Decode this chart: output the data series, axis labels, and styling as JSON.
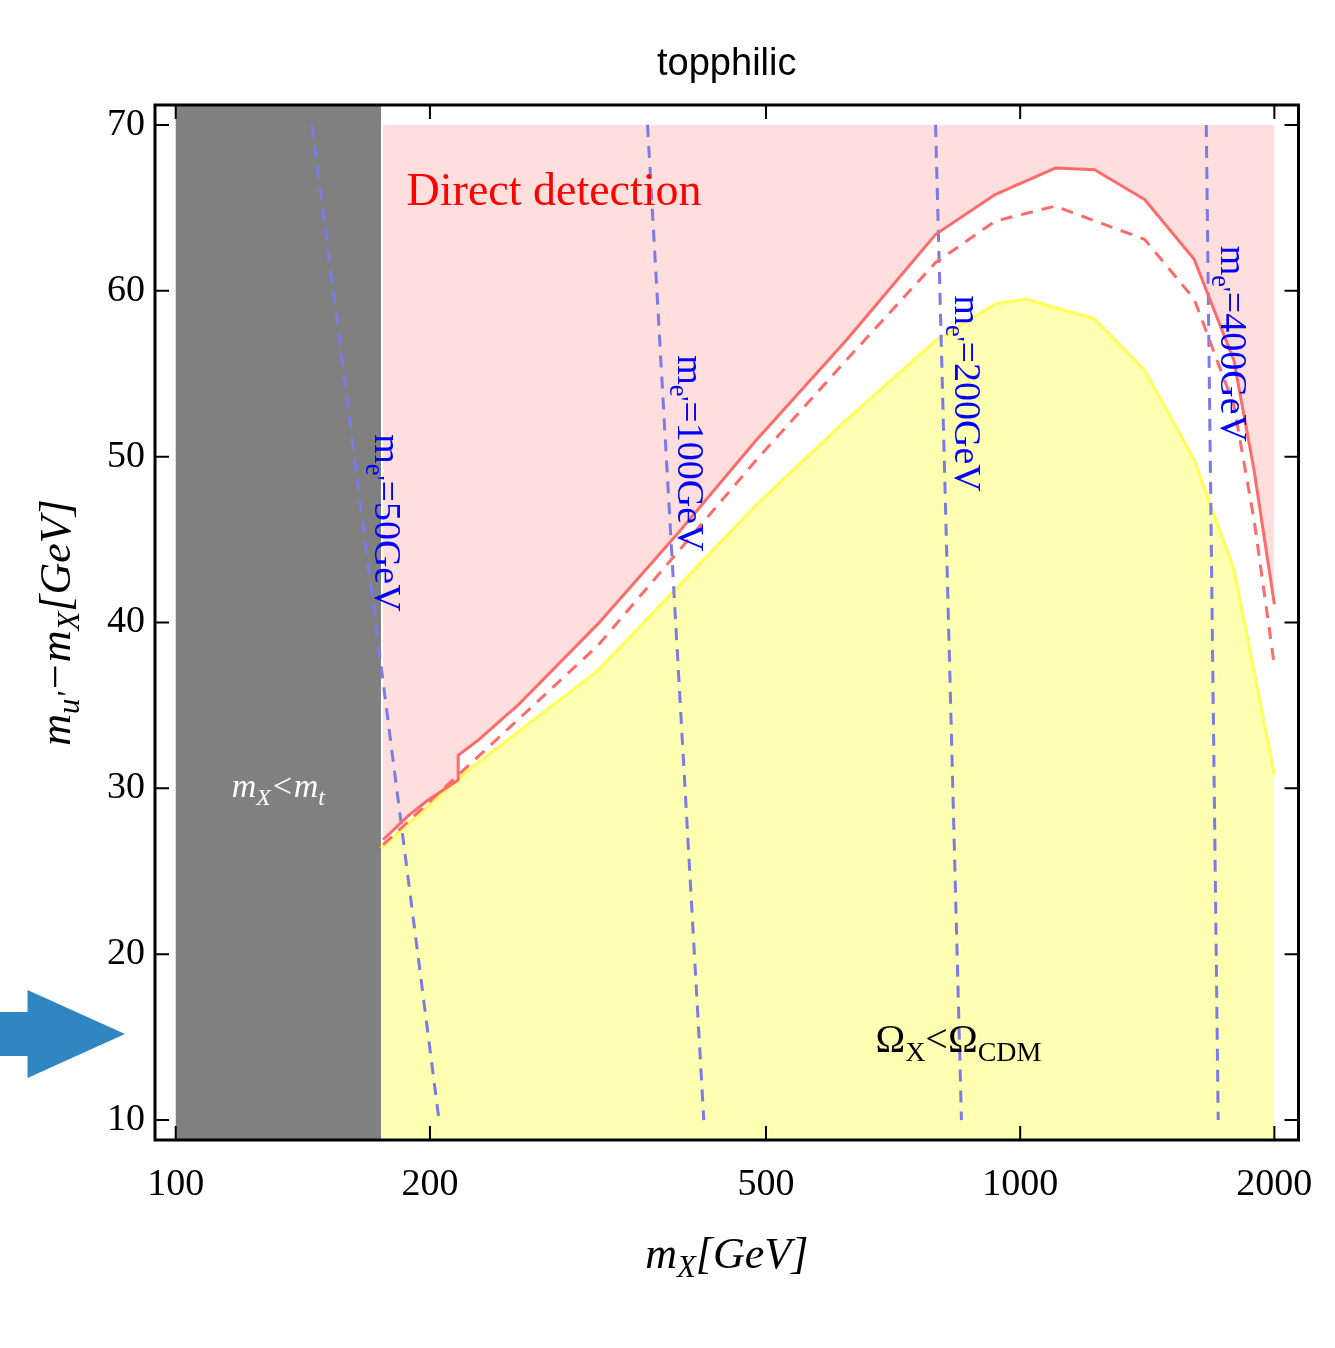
{
  "chart_data": {
    "type": "line",
    "title": "topphilic",
    "xlabel": "m$_{X}$[GeV]",
    "ylabel": "m$_{u'}$−m$_{X}$[GeV]",
    "log": "x",
    "xlim": [
      94.5,
      2136
    ],
    "ylim": [
      8.8,
      71.2
    ],
    "xticks": [
      100,
      200,
      500,
      1000,
      2000
    ],
    "yticks": [
      10,
      20,
      30,
      40,
      50,
      60,
      70
    ],
    "grid": false,
    "legend": false,
    "marker": "none",
    "bands": [
      {
        "axis": "x",
        "from": 100,
        "to": 175,
        "label": "m$_{X}$<m$_{t}$",
        "color": "#808080"
      }
    ],
    "annotations": [
      "Direct detection",
      "Ω$_{X}$<Ω$_{CDM}$"
    ],
    "series": [
      {
        "color": "#ff6b6b",
        "x": [
          176,
          189,
          199,
          216,
          216,
          228,
          254,
          316,
          392,
          487,
          622,
          794,
          934,
          1100,
          1225,
          1404,
          1607,
          1791,
          1892,
          2000
        ],
        "values": [
          26.9,
          28.4,
          29.3,
          30.5,
          32.0,
          32.9,
          35.0,
          39.9,
          45.3,
          51.0,
          57.0,
          63.4,
          65.8,
          67.4,
          67.3,
          65.5,
          61.9,
          55.8,
          49.2,
          41.1
        ],
        "lower": [
          26.9,
          28.4,
          29.3,
          30.5,
          32.0,
          32.9,
          35.0,
          39.9,
          45.3,
          51.0,
          57.0,
          63.4,
          65.8,
          67.4,
          67.3,
          65.5,
          61.9,
          55.8,
          49.2,
          41.1
        ],
        "upper": [
          70,
          70,
          70,
          70,
          70,
          70,
          70,
          70,
          70,
          70,
          70,
          70,
          70,
          70,
          70,
          70,
          70,
          70,
          70,
          70
        ]
      },
      {
        "type": "area",
        "color": "#ffff55",
        "x": [
          175,
          222,
          316,
          487,
          622,
          794,
          934,
          1014,
          1225,
          1404,
          1607,
          1791,
          2000
        ],
        "values": [
          26.4,
          31.1,
          37.1,
          47.1,
          52.2,
          57.0,
          59.2,
          59.5,
          58.3,
          55.2,
          49.8,
          43.2,
          30.8
        ]
      },
      {
        "color": "#ff6b6b",
        "line_style": "dashed",
        "x": [
          176,
          216,
          316,
          487,
          622,
          794,
          934,
          1100,
          1404,
          1607,
          1791,
          1892,
          2000
        ],
        "values": [
          26.6,
          30.8,
          38.6,
          49.8,
          55.8,
          61.7,
          64.2,
          65.1,
          63.1,
          59.5,
          53.1,
          46.2,
          37.4
        ]
      },
      {
        "name": "m$_{e'}$=50GeV",
        "color": "#7a7ae8",
        "line_style": "dashed",
        "x": [
          145,
          205
        ],
        "values": [
          70,
          10
        ]
      },
      {
        "name": "m$_{e'}$=100GeV",
        "color": "#7a7ae8",
        "line_style": "dashed",
        "x": [
          362,
          422
        ],
        "values": [
          70,
          10
        ]
      },
      {
        "name": "m$_{e'}$=200GeV",
        "color": "#7a7ae8",
        "line_style": "dashed",
        "x": [
          794,
          852
        ],
        "values": [
          70,
          10
        ]
      },
      {
        "name": "m$_{e'}$=400GeV",
        "color": "#7a7ae8",
        "line_style": "dashed",
        "x": [
          1661,
          1716
        ],
        "values": [
          70,
          10
        ]
      }
    ]
  }
}
